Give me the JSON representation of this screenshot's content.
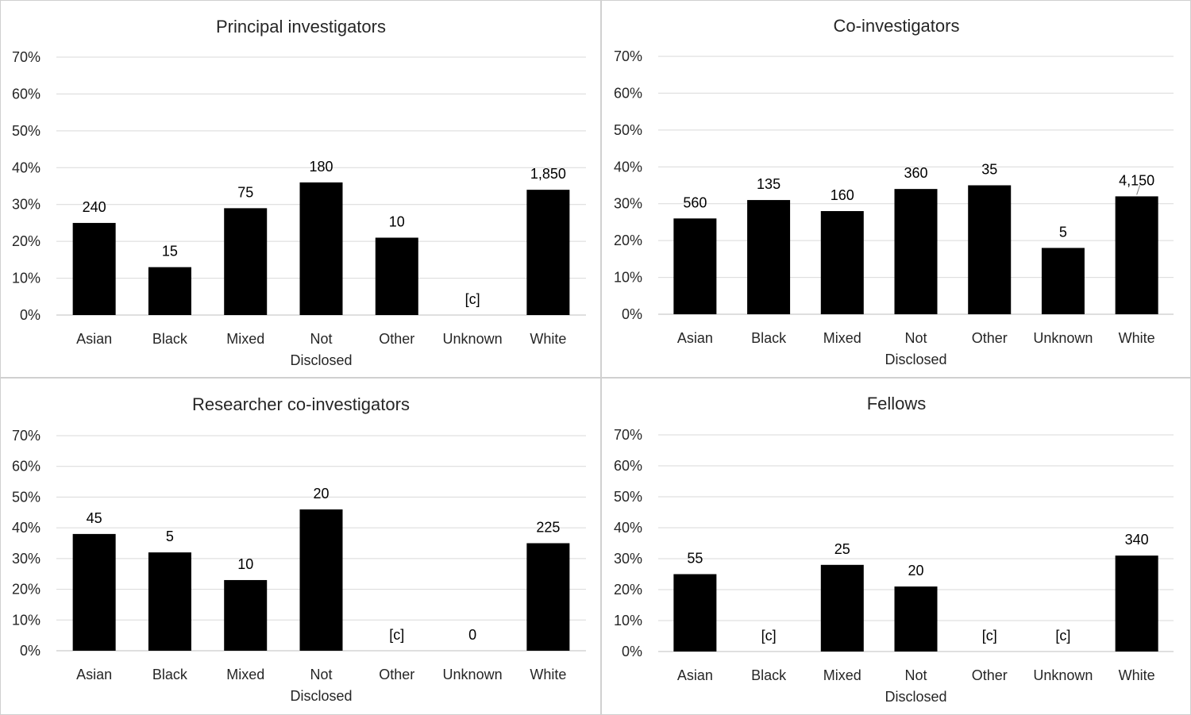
{
  "chart_data": [
    {
      "type": "bar",
      "title": "Principal investigators",
      "categories": [
        "Asian",
        "Black",
        "Mixed",
        "Not Disclosed",
        "Other",
        "Unknown",
        "White"
      ],
      "values": [
        25,
        13,
        29,
        36,
        21,
        null,
        34
      ],
      "data_labels": [
        "240",
        "15",
        "75",
        "180",
        "10",
        "[c]",
        "1,850"
      ],
      "value_unit": "%",
      "yticks": [
        "0%",
        "10%",
        "20%",
        "30%",
        "40%",
        "50%",
        "60%",
        "70%"
      ],
      "ylim": [
        0,
        70
      ],
      "grid": true,
      "bar_color": "#000000"
    },
    {
      "type": "bar",
      "title": "Co-investigators",
      "categories": [
        "Asian",
        "Black",
        "Mixed",
        "Not Disclosed",
        "Other",
        "Unknown",
        "White"
      ],
      "values": [
        26,
        31,
        28,
        34,
        35,
        18,
        32
      ],
      "data_labels": [
        "560",
        "135",
        "160",
        "360",
        "35",
        "5",
        "4,150"
      ],
      "value_unit": "%",
      "yticks": [
        "0%",
        "10%",
        "20%",
        "30%",
        "40%",
        "50%",
        "60%",
        "70%"
      ],
      "ylim": [
        0,
        70
      ],
      "grid": true,
      "bar_color": "#000000"
    },
    {
      "type": "bar",
      "title": "Researcher co-investigators",
      "categories": [
        "Asian",
        "Black",
        "Mixed",
        "Not Disclosed",
        "Other",
        "Unknown",
        "White"
      ],
      "values": [
        38,
        32,
        23,
        46,
        null,
        0,
        35
      ],
      "data_labels": [
        "45",
        "5",
        "10",
        "20",
        "[c]",
        "0",
        "225"
      ],
      "value_unit": "%",
      "yticks": [
        "0%",
        "10%",
        "20%",
        "30%",
        "40%",
        "50%",
        "60%",
        "70%"
      ],
      "ylim": [
        0,
        70
      ],
      "grid": true,
      "bar_color": "#000000"
    },
    {
      "type": "bar",
      "title": "Fellows",
      "categories": [
        "Asian",
        "Black",
        "Mixed",
        "Not Disclosed",
        "Other",
        "Unknown",
        "White"
      ],
      "values": [
        25,
        null,
        28,
        21,
        null,
        null,
        31
      ],
      "data_labels": [
        "55",
        "[c]",
        "25",
        "20",
        "[c]",
        "[c]",
        "340"
      ],
      "value_unit": "%",
      "yticks": [
        "0%",
        "10%",
        "20%",
        "30%",
        "40%",
        "50%",
        "60%",
        "70%"
      ],
      "ylim": [
        0,
        70
      ],
      "grid": true,
      "bar_color": "#000000"
    }
  ]
}
